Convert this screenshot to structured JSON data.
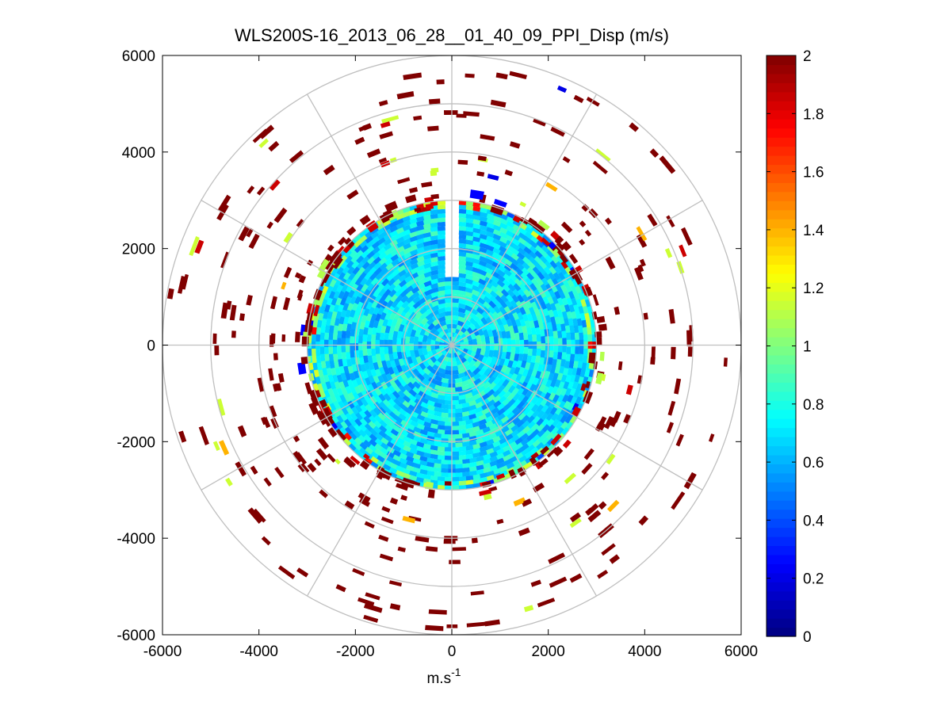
{
  "chart_data": {
    "type": "heatmap",
    "subtype": "polar-ppi",
    "title": "WLS200S-16_2013_06_28__01_40_09_PPI_Disp (m/s)",
    "xlabel_base": "m.s",
    "xlabel_exponent": "-1",
    "ylabel": "",
    "xlim": [
      -6000,
      6000
    ],
    "ylim": [
      -6000,
      6000
    ],
    "xticks": [
      "-6000",
      "-4000",
      "-2000",
      "0",
      "2000",
      "4000",
      "6000"
    ],
    "yticks": [
      "6000",
      "4000",
      "2000",
      "0",
      "-2000",
      "-4000",
      "-6000"
    ],
    "grid_rings": [
      1000,
      2000,
      3000,
      4000,
      5000,
      6000
    ],
    "grid_spokes_deg": [
      0,
      30,
      60,
      90,
      120,
      150,
      180,
      210,
      240,
      270,
      300,
      330
    ],
    "dense_region": {
      "inner_radius": 0,
      "outer_radius": 3000,
      "value_range": [
        0.5,
        0.9
      ],
      "gap_azimuth_deg": [
        -3,
        3
      ]
    },
    "sparse_region": {
      "inner_radius": 3000,
      "outer_radius": 6000,
      "dominant_value": 2.0
    },
    "colorbar": {
      "colormap": "jet",
      "range": [
        0,
        2
      ],
      "ticks": [
        "2",
        "1.8",
        "1.6",
        "1.4",
        "1.2",
        "1",
        "0.8",
        "0.6",
        "0.4",
        "0.2",
        "0"
      ]
    }
  }
}
